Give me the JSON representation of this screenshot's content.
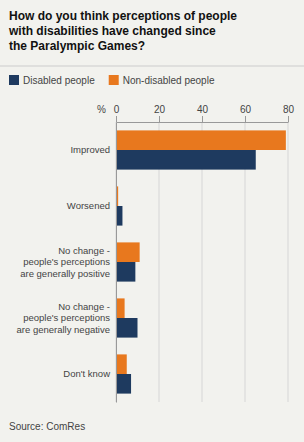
{
  "chart_data": {
    "type": "bar",
    "orientation": "horizontal",
    "title": "How do you think perceptions of people\nwith disabilities have changed since\nthe Paralympic Games?",
    "categories": [
      "Improved",
      "Worsened",
      "No change -\npeople's perceptions\nare generally positive",
      "No change -\npeople's perceptions\nare generally negative",
      "Don't know"
    ],
    "series": [
      {
        "name": "Disabled people",
        "color": "#1e3a5f",
        "values": [
          65,
          3,
          9,
          10,
          7
        ]
      },
      {
        "name": "Non-disabled people",
        "color": "#e8781e",
        "values": [
          79,
          1,
          11,
          4,
          5
        ]
      }
    ],
    "xlabel": "%",
    "xlim": [
      0,
      80
    ],
    "xticks": [
      0,
      20,
      40,
      60,
      80
    ],
    "grid": true,
    "legend": "top",
    "annotations": [
      "Source: ComRes"
    ]
  }
}
